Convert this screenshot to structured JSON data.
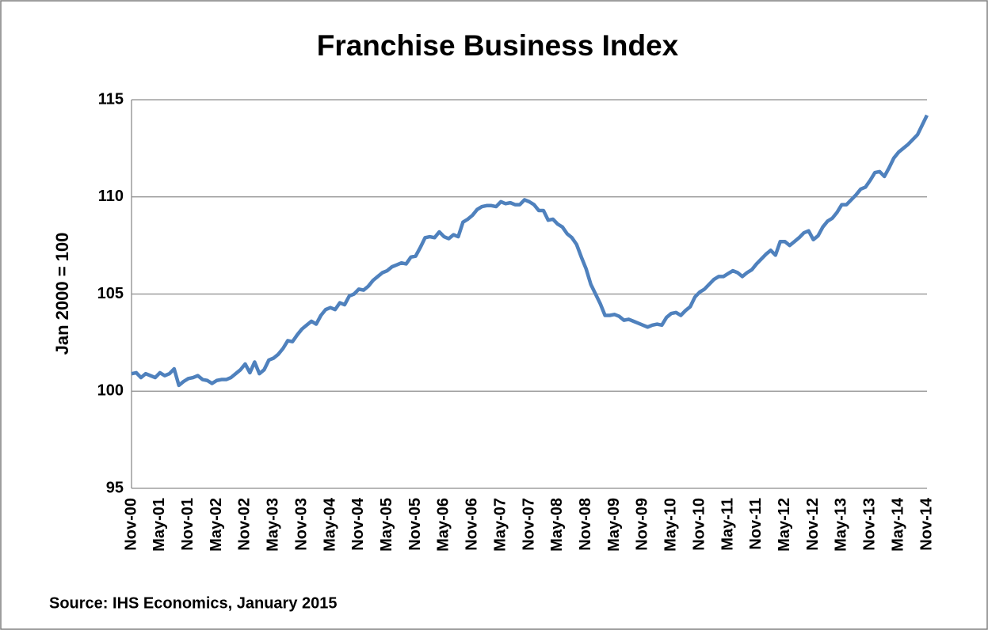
{
  "chart_data": {
    "type": "line",
    "title": "Franchise Business Index",
    "y_label": "Jan 2000 = 100",
    "source": "Source:  IHS Economics, January 2015",
    "categories": [
      "Nov-00",
      null,
      null,
      null,
      null,
      null,
      "May-01",
      null,
      null,
      null,
      null,
      null,
      "Nov-01",
      null,
      null,
      null,
      null,
      null,
      "May-02",
      null,
      null,
      null,
      null,
      null,
      "Nov-02",
      null,
      null,
      null,
      null,
      null,
      "May-03",
      null,
      null,
      null,
      null,
      null,
      "Nov-03",
      null,
      null,
      null,
      null,
      null,
      "May-04",
      null,
      null,
      null,
      null,
      null,
      "Nov-04",
      null,
      null,
      null,
      null,
      null,
      "May-05",
      null,
      null,
      null,
      null,
      null,
      "Nov-05",
      null,
      null,
      null,
      null,
      null,
      "May-06",
      null,
      null,
      null,
      null,
      null,
      "Nov-06",
      null,
      null,
      null,
      null,
      null,
      "May-07",
      null,
      null,
      null,
      null,
      null,
      "Nov-07",
      null,
      null,
      null,
      null,
      null,
      "May-08",
      null,
      null,
      null,
      null,
      null,
      "Nov-08",
      null,
      null,
      null,
      null,
      null,
      "May-09",
      null,
      null,
      null,
      null,
      null,
      "Nov-09",
      null,
      null,
      null,
      null,
      null,
      "May-10",
      null,
      null,
      null,
      null,
      null,
      "Nov-10",
      null,
      null,
      null,
      null,
      null,
      "May-11",
      null,
      null,
      null,
      null,
      null,
      "Nov-11",
      null,
      null,
      null,
      null,
      null,
      "May-12",
      null,
      null,
      null,
      null,
      null,
      "Nov-12",
      null,
      null,
      null,
      null,
      null,
      "May-13",
      null,
      null,
      null,
      null,
      null,
      "Nov-13",
      null,
      null,
      null,
      null,
      null,
      "May-14",
      null,
      null,
      null,
      null,
      null,
      "Nov-14"
    ],
    "series": [
      {
        "name": "Franchise Business Index",
        "color": "#4f81bd",
        "values": [
          100.9,
          100.95,
          100.7,
          100.9,
          100.8,
          100.7,
          100.95,
          100.8,
          100.9,
          101.15,
          100.3,
          100.5,
          100.65,
          100.7,
          100.8,
          100.6,
          100.55,
          100.4,
          100.55,
          100.6,
          100.6,
          100.7,
          100.9,
          101.1,
          101.4,
          100.95,
          101.5,
          100.9,
          101.1,
          101.6,
          101.7,
          101.9,
          102.2,
          102.6,
          102.55,
          102.9,
          103.2,
          103.4,
          103.6,
          103.45,
          103.9,
          104.2,
          104.3,
          104.2,
          104.55,
          104.45,
          104.9,
          105.0,
          105.25,
          105.2,
          105.4,
          105.7,
          105.9,
          106.1,
          106.2,
          106.4,
          106.5,
          106.6,
          106.55,
          106.9,
          106.95,
          107.4,
          107.9,
          107.95,
          107.9,
          108.2,
          107.95,
          107.85,
          108.05,
          107.95,
          108.7,
          108.85,
          109.05,
          109.35,
          109.5,
          109.55,
          109.55,
          109.5,
          109.75,
          109.65,
          109.7,
          109.6,
          109.6,
          109.85,
          109.75,
          109.6,
          109.3,
          109.3,
          108.8,
          108.85,
          108.6,
          108.45,
          108.1,
          107.9,
          107.55,
          106.9,
          106.3,
          105.5,
          105.0,
          104.5,
          103.9,
          103.9,
          103.95,
          103.85,
          103.65,
          103.7,
          103.6,
          103.5,
          103.4,
          103.3,
          103.4,
          103.45,
          103.4,
          103.8,
          104.0,
          104.05,
          103.9,
          104.15,
          104.35,
          104.85,
          105.1,
          105.25,
          105.5,
          105.75,
          105.9,
          105.9,
          106.05,
          106.2,
          106.1,
          105.9,
          106.1,
          106.25,
          106.55,
          106.8,
          107.05,
          107.25,
          107.0,
          107.7,
          107.7,
          107.5,
          107.7,
          107.9,
          108.15,
          108.25,
          107.8,
          108.0,
          108.45,
          108.75,
          108.9,
          109.2,
          109.6,
          109.6,
          109.85,
          110.1,
          110.4,
          110.5,
          110.85,
          111.25,
          111.3,
          111.05,
          111.5,
          112.0,
          112.3,
          112.5,
          112.7,
          112.95,
          113.2,
          113.7,
          114.2
        ]
      }
    ],
    "ylim": [
      95,
      115
    ],
    "yticks": [
      95,
      100,
      105,
      110,
      115
    ],
    "grid": true,
    "legend": false
  }
}
